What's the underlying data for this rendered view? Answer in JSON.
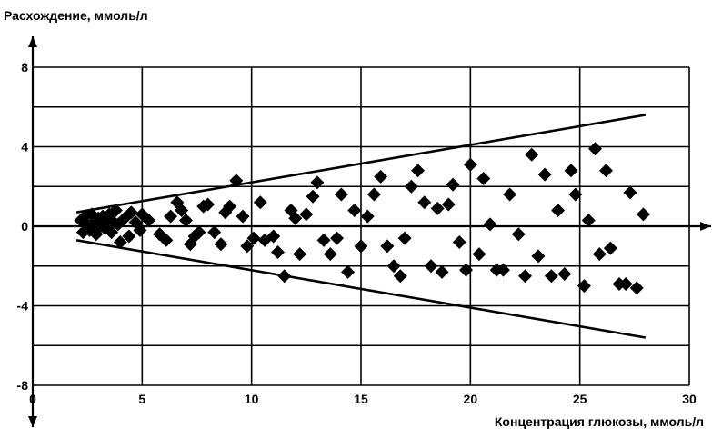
{
  "chart_data": {
    "type": "scatter",
    "title": "",
    "ylabel": "Расхождение, ммоль/л",
    "xlabel": "Концентрация глюкозы, ммоль/л",
    "xlim": [
      0,
      30
    ],
    "ylim": [
      -8,
      8
    ],
    "x_ticks": [
      "0",
      "5",
      "10",
      "15",
      "20",
      "25",
      "30"
    ],
    "y_ticks": [
      "8",
      "4",
      "0",
      "-4",
      "-8"
    ],
    "grid": true,
    "legend": "none",
    "marker": "diamond",
    "colors": {
      "marker": "#000000",
      "lines": "#000000",
      "grid": "#000000"
    },
    "limit_lines": [
      {
        "name": "",
        "x": [
          2,
          28
        ],
        "y": [
          0.7,
          5.6
        ]
      },
      {
        "name": "",
        "x": [
          2,
          28
        ],
        "y": [
          -0.7,
          -5.6
        ]
      }
    ],
    "points": [
      [
        2.2,
        0.3
      ],
      [
        2.3,
        -0.3
      ],
      [
        2.4,
        0.5
      ],
      [
        2.5,
        0.1
      ],
      [
        2.6,
        -0.2
      ],
      [
        2.7,
        0.6
      ],
      [
        2.8,
        0.2
      ],
      [
        2.9,
        -0.4
      ],
      [
        3.0,
        0.4
      ],
      [
        3.1,
        0.0
      ],
      [
        3.2,
        0.5
      ],
      [
        3.3,
        -0.1
      ],
      [
        3.4,
        0.3
      ],
      [
        3.5,
        0.6
      ],
      [
        3.6,
        -0.3
      ],
      [
        3.7,
        0.2
      ],
      [
        3.8,
        0.8
      ],
      [
        3.9,
        0.1
      ],
      [
        4.0,
        -0.8
      ],
      [
        4.2,
        0.4
      ],
      [
        4.4,
        -0.5
      ],
      [
        4.5,
        0.7
      ],
      [
        4.7,
        0.2
      ],
      [
        4.9,
        -0.2
      ],
      [
        5.0,
        0.6
      ],
      [
        5.3,
        0.3
      ],
      [
        5.8,
        -0.4
      ],
      [
        6.1,
        -0.7
      ],
      [
        6.3,
        0.5
      ],
      [
        6.6,
        1.2
      ],
      [
        6.8,
        0.8
      ],
      [
        7.0,
        0.3
      ],
      [
        7.2,
        -0.9
      ],
      [
        7.4,
        -0.5
      ],
      [
        7.6,
        -0.3
      ],
      [
        7.8,
        1.0
      ],
      [
        8.0,
        1.1
      ],
      [
        8.3,
        -0.3
      ],
      [
        8.6,
        -0.9
      ],
      [
        8.8,
        0.7
      ],
      [
        9.0,
        1.0
      ],
      [
        9.3,
        2.3
      ],
      [
        9.6,
        0.5
      ],
      [
        9.8,
        -1.0
      ],
      [
        10.1,
        -0.6
      ],
      [
        10.4,
        1.2
      ],
      [
        10.6,
        -0.7
      ],
      [
        11.0,
        -0.5
      ],
      [
        11.2,
        -1.3
      ],
      [
        11.5,
        -2.5
      ],
      [
        11.8,
        0.8
      ],
      [
        12.0,
        0.4
      ],
      [
        12.2,
        -1.4
      ],
      [
        12.5,
        0.6
      ],
      [
        12.8,
        1.5
      ],
      [
        13.0,
        2.2
      ],
      [
        13.3,
        -0.7
      ],
      [
        13.6,
        -1.4
      ],
      [
        13.9,
        -0.6
      ],
      [
        14.1,
        1.6
      ],
      [
        14.4,
        -2.3
      ],
      [
        14.7,
        0.8
      ],
      [
        15.0,
        -1.0
      ],
      [
        15.3,
        0.5
      ],
      [
        15.6,
        1.6
      ],
      [
        15.9,
        2.5
      ],
      [
        16.2,
        -1.0
      ],
      [
        16.5,
        -2.0
      ],
      [
        16.8,
        -2.5
      ],
      [
        17.0,
        -0.6
      ],
      [
        17.3,
        2.0
      ],
      [
        17.6,
        2.8
      ],
      [
        17.9,
        1.2
      ],
      [
        18.2,
        -2.0
      ],
      [
        18.5,
        0.9
      ],
      [
        18.7,
        -2.3
      ],
      [
        19.0,
        1.1
      ],
      [
        19.2,
        2.1
      ],
      [
        19.5,
        -0.8
      ],
      [
        19.8,
        -2.2
      ],
      [
        20.0,
        3.1
      ],
      [
        20.4,
        -1.4
      ],
      [
        20.6,
        2.4
      ],
      [
        20.9,
        0.1
      ],
      [
        21.2,
        -2.2
      ],
      [
        21.5,
        -2.2
      ],
      [
        21.8,
        1.6
      ],
      [
        22.2,
        -0.4
      ],
      [
        22.5,
        -2.5
      ],
      [
        22.8,
        3.6
      ],
      [
        23.1,
        -1.5
      ],
      [
        23.4,
        2.6
      ],
      [
        23.7,
        -2.5
      ],
      [
        24.0,
        0.8
      ],
      [
        24.3,
        -2.4
      ],
      [
        24.6,
        2.8
      ],
      [
        24.8,
        1.6
      ],
      [
        25.2,
        -3.0
      ],
      [
        25.4,
        0.3
      ],
      [
        25.7,
        3.9
      ],
      [
        25.9,
        -1.4
      ],
      [
        26.2,
        2.8
      ],
      [
        26.4,
        -1.1
      ],
      [
        26.8,
        -2.9
      ],
      [
        27.1,
        -2.9
      ],
      [
        27.3,
        1.7
      ],
      [
        27.6,
        -3.1
      ],
      [
        27.9,
        0.6
      ]
    ]
  }
}
